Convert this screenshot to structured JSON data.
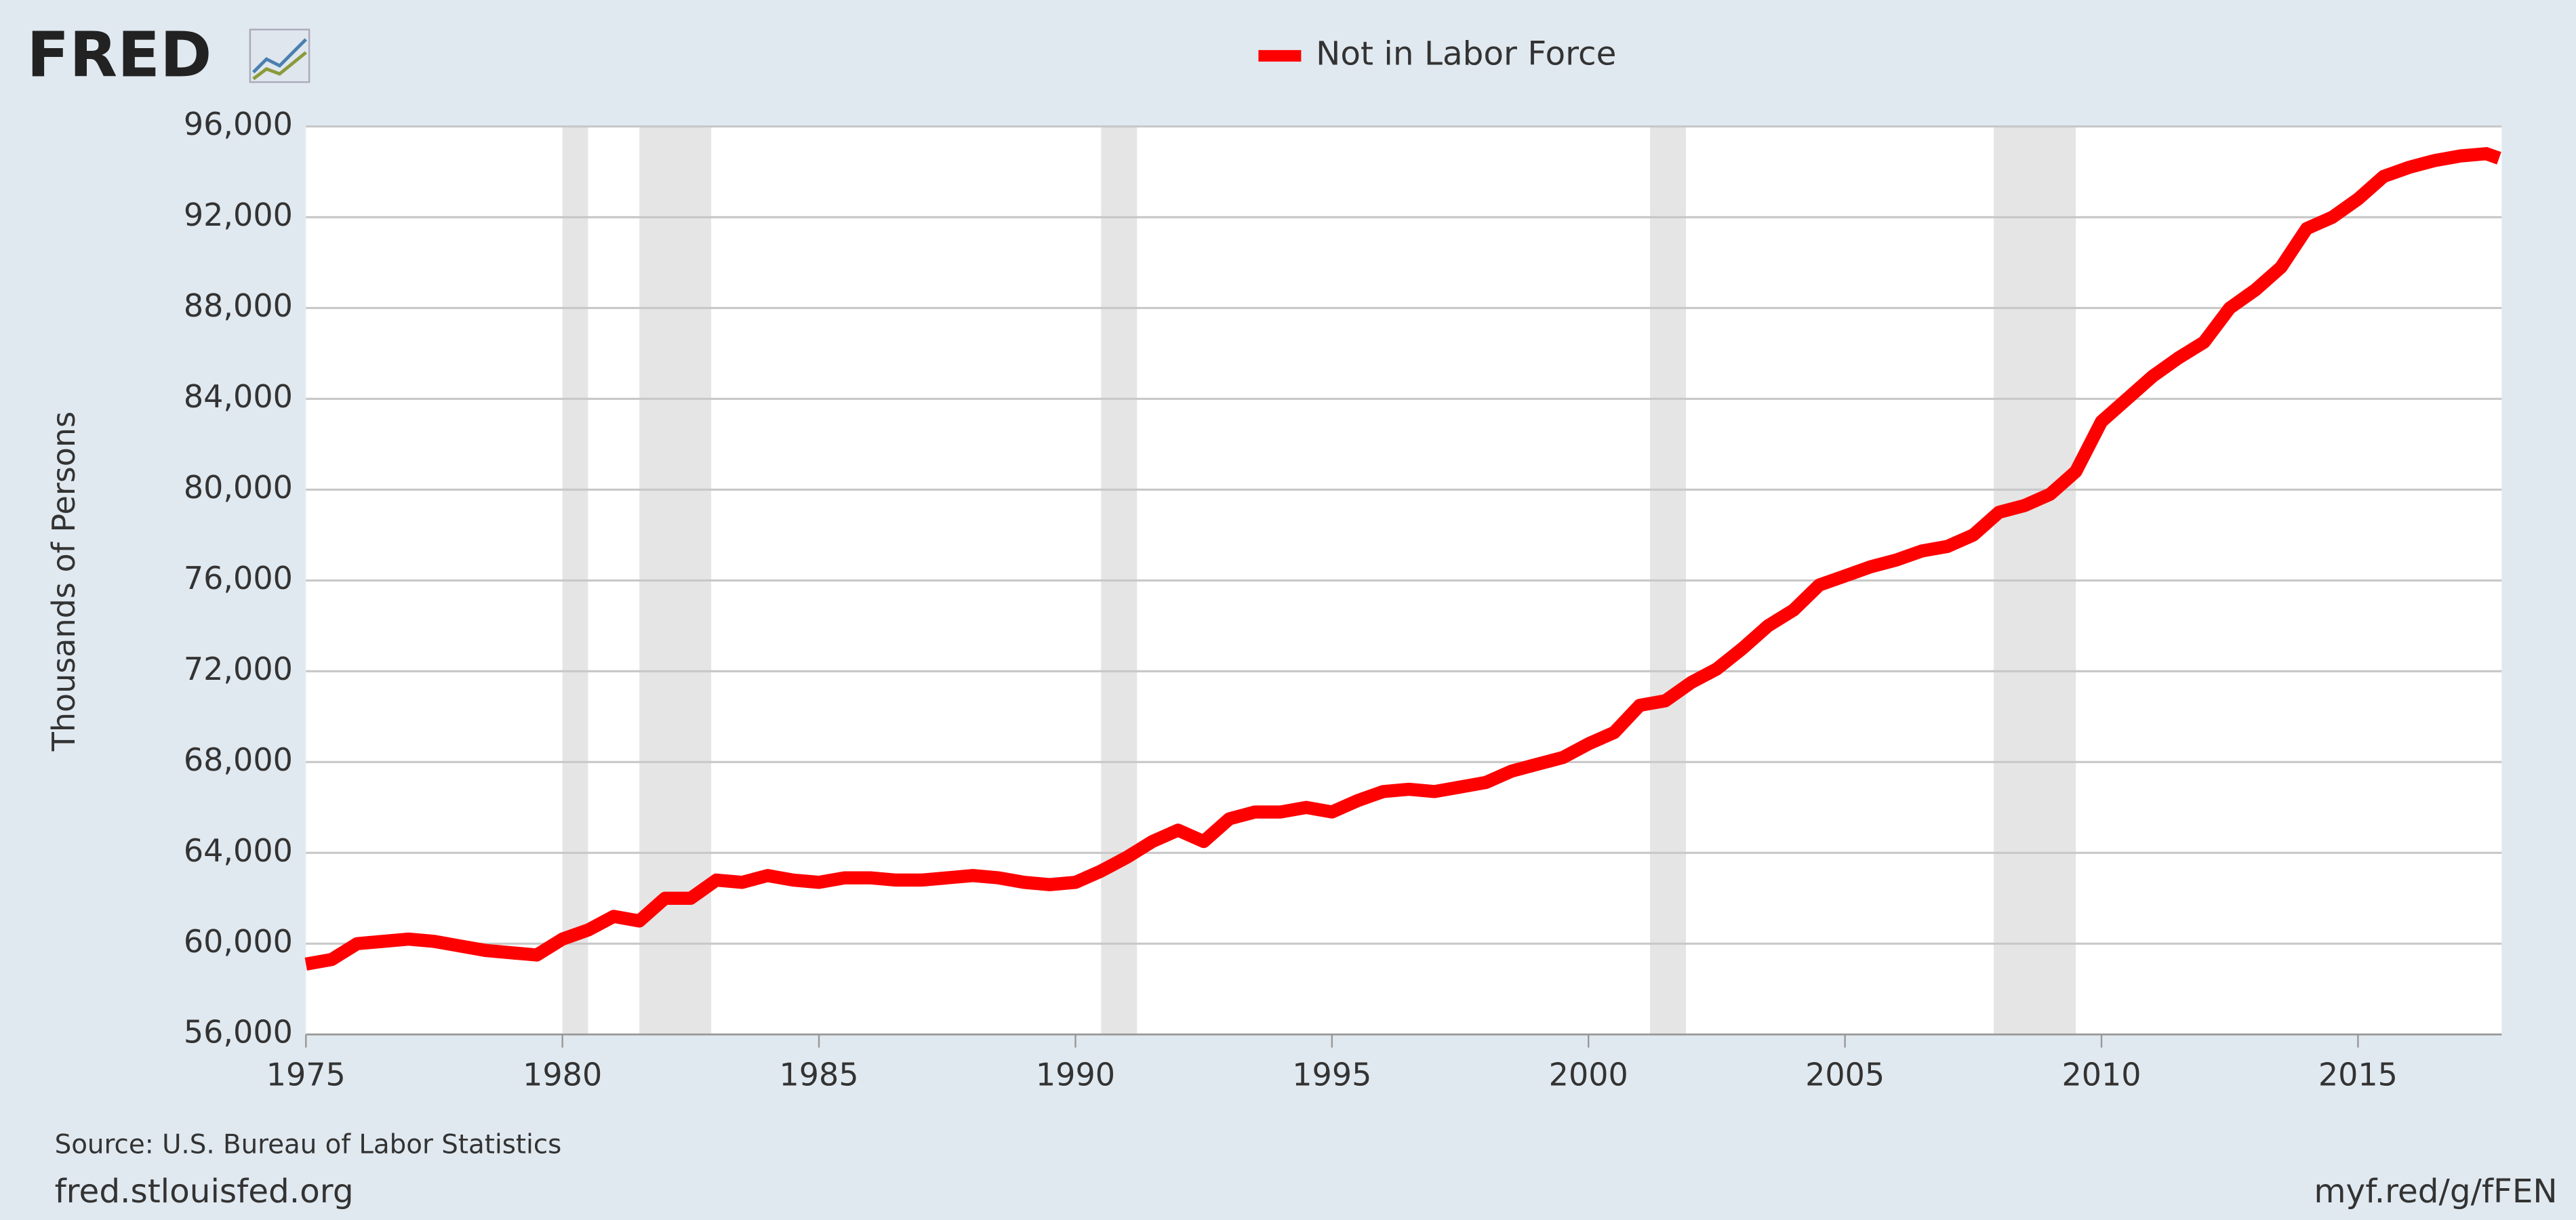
{
  "chart_data": {
    "type": "line",
    "logo": "FRED",
    "ylabel": "Thousands of Persons",
    "source": "Source: U.S. Bureau of Labor Statistics",
    "site": "fred.stlouisfed.org",
    "link": "myf.red/g/fFEN",
    "xlim": [
      1975,
      2017.8
    ],
    "xticks": [
      1975,
      1980,
      1985,
      1990,
      1995,
      2000,
      2005,
      2010,
      2015
    ],
    "ylim": [
      56000,
      96000
    ],
    "yticks": [
      {
        "value": 56000,
        "label": "56,000"
      },
      {
        "value": 60000,
        "label": "60,000"
      },
      {
        "value": 64000,
        "label": "64,000"
      },
      {
        "value": 68000,
        "label": "68,000"
      },
      {
        "value": 72000,
        "label": "72,000"
      },
      {
        "value": 76000,
        "label": "76,000"
      },
      {
        "value": 80000,
        "label": "80,000"
      },
      {
        "value": 84000,
        "label": "84,000"
      },
      {
        "value": 88000,
        "label": "88,000"
      },
      {
        "value": 92000,
        "label": "92,000"
      },
      {
        "value": 96000,
        "label": "96,000"
      }
    ],
    "grid": true,
    "recessions": [
      [
        1980.0,
        1980.5
      ],
      [
        1981.5,
        1982.9
      ],
      [
        1990.5,
        1991.2
      ],
      [
        2001.2,
        2001.9
      ],
      [
        2007.9,
        2009.5
      ]
    ],
    "x": [
      1975,
      1975.5,
      1976,
      1976.5,
      1977,
      1977.5,
      1978,
      1978.5,
      1979,
      1979.5,
      1980,
      1980.5,
      1981,
      1981.5,
      1982,
      1982.5,
      1983,
      1983.5,
      1984,
      1984.5,
      1985,
      1985.5,
      1986,
      1986.5,
      1987,
      1987.5,
      1988,
      1988.5,
      1989,
      1989.5,
      1990,
      1990.5,
      1991,
      1991.5,
      1992,
      1992.5,
      1993,
      1993.5,
      1994,
      1994.5,
      1995,
      1995.5,
      1996,
      1996.5,
      1997,
      1997.5,
      1998,
      1998.5,
      1999,
      1999.5,
      2000,
      2000.5,
      2001,
      2001.5,
      2002,
      2002.5,
      2003,
      2003.5,
      2004,
      2004.5,
      2005,
      2005.5,
      2006,
      2006.5,
      2007,
      2007.5,
      2008,
      2008.5,
      2009,
      2009.5,
      2010,
      2010.5,
      2011,
      2011.5,
      2012,
      2012.5,
      2013,
      2013.5,
      2014,
      2014.5,
      2015,
      2015.5,
      2016,
      2016.5,
      2017,
      2017.5,
      2017.75
    ],
    "series": [
      {
        "name": "Not in Labor Force",
        "color": "#ff0000",
        "values": [
          59100,
          59300,
          60000,
          60100,
          60200,
          60100,
          59900,
          59700,
          59600,
          59500,
          60200,
          60600,
          61200,
          61000,
          62000,
          62000,
          62800,
          62700,
          63000,
          62800,
          62700,
          62900,
          62900,
          62800,
          62800,
          62900,
          63000,
          62900,
          62700,
          62600,
          62700,
          63200,
          63800,
          64500,
          65000,
          64500,
          65500,
          65800,
          65800,
          66000,
          65800,
          66300,
          66700,
          66800,
          66700,
          66900,
          67100,
          67600,
          67900,
          68200,
          68800,
          69300,
          70500,
          70700,
          71500,
          72100,
          73000,
          74000,
          74700,
          75800,
          76200,
          76600,
          76900,
          77300,
          77500,
          78000,
          79000,
          79300,
          79800,
          80800,
          83000,
          84000,
          85000,
          85800,
          86500,
          88000,
          88800,
          89800,
          91500,
          92000,
          92800,
          93800,
          94200,
          94500,
          94700,
          94800,
          94600
        ]
      }
    ]
  }
}
